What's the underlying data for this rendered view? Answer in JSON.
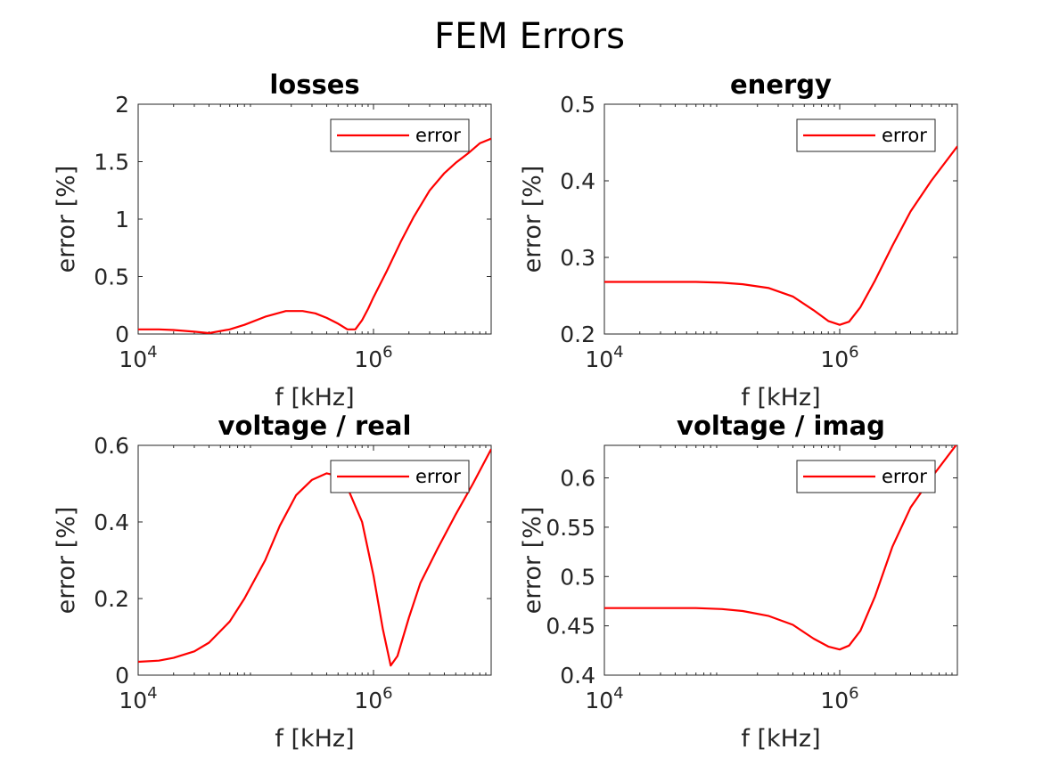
{
  "figure": {
    "title": "FEM Errors"
  },
  "chart_data": [
    {
      "type": "line",
      "title": "losses",
      "xlabel": "f [kHz]",
      "ylabel": "error [%]",
      "xscale": "log",
      "xlim": [
        10000,
        10000000
      ],
      "ylim": [
        0,
        2
      ],
      "yticks": [
        0,
        0.5,
        1,
        1.5,
        2
      ],
      "ytick_labels": [
        "0",
        "0.5",
        "1",
        "1.5",
        "2"
      ],
      "xticks": [
        10000,
        1000000
      ],
      "xtick_labels": [
        {
          "base": "10",
          "exp": "4"
        },
        {
          "base": "10",
          "exp": "6"
        }
      ],
      "legend": "top-right",
      "series": [
        {
          "name": "error",
          "color": "#ff0000",
          "x": [
            10000,
            15000,
            20000,
            30000,
            40000,
            60000,
            80000,
            120000,
            180000,
            250000,
            320000,
            400000,
            500000,
            600000,
            700000,
            800000,
            900000,
            1000000,
            1300000,
            1700000,
            2200000,
            3000000,
            4000000,
            5000000,
            6500000,
            8000000,
            10000000
          ],
          "values": [
            0.04,
            0.04,
            0.035,
            0.02,
            0.008,
            0.04,
            0.08,
            0.15,
            0.2,
            0.2,
            0.18,
            0.14,
            0.09,
            0.04,
            0.04,
            0.12,
            0.22,
            0.32,
            0.55,
            0.8,
            1.02,
            1.25,
            1.4,
            1.49,
            1.58,
            1.66,
            1.7
          ]
        }
      ]
    },
    {
      "type": "line",
      "title": "energy",
      "xlabel": "f [kHz]",
      "ylabel": "error [%]",
      "xscale": "log",
      "xlim": [
        10000,
        10000000
      ],
      "ylim": [
        0.2,
        0.5
      ],
      "yticks": [
        0.2,
        0.3,
        0.4,
        0.5
      ],
      "ytick_labels": [
        "0.2",
        "0.3",
        "0.4",
        "0.5"
      ],
      "xticks": [
        10000,
        1000000
      ],
      "xtick_labels": [
        {
          "base": "10",
          "exp": "4"
        },
        {
          "base": "10",
          "exp": "6"
        }
      ],
      "legend": "top-right",
      "series": [
        {
          "name": "error",
          "color": "#ff0000",
          "x": [
            10000,
            30000,
            60000,
            100000,
            150000,
            250000,
            400000,
            600000,
            800000,
            1000000,
            1200000,
            1500000,
            2000000,
            2800000,
            4000000,
            6000000,
            10000000
          ],
          "values": [
            0.268,
            0.268,
            0.268,
            0.267,
            0.265,
            0.26,
            0.249,
            0.231,
            0.217,
            0.212,
            0.216,
            0.235,
            0.27,
            0.315,
            0.36,
            0.4,
            0.445
          ]
        }
      ]
    },
    {
      "type": "line",
      "title": "voltage / real",
      "xlabel": "f [kHz]",
      "ylabel": "error [%]",
      "xscale": "log",
      "xlim": [
        10000,
        10000000
      ],
      "ylim": [
        0,
        0.6
      ],
      "yticks": [
        0,
        0.2,
        0.4,
        0.6
      ],
      "ytick_labels": [
        "0",
        "0.2",
        "0.4",
        "0.6"
      ],
      "xticks": [
        10000,
        1000000
      ],
      "xtick_labels": [
        {
          "base": "10",
          "exp": "4"
        },
        {
          "base": "10",
          "exp": "6"
        }
      ],
      "legend": "top-right",
      "series": [
        {
          "name": "error",
          "color": "#ff0000",
          "x": [
            10000,
            15000,
            20000,
            30000,
            40000,
            60000,
            80000,
            120000,
            160000,
            220000,
            300000,
            400000,
            500000,
            600000,
            800000,
            1000000,
            1200000,
            1400000,
            1600000,
            2000000,
            2500000,
            3500000,
            5000000,
            7000000,
            10000000
          ],
          "values": [
            0.035,
            0.038,
            0.045,
            0.062,
            0.085,
            0.14,
            0.2,
            0.3,
            0.39,
            0.47,
            0.51,
            0.527,
            0.52,
            0.49,
            0.4,
            0.26,
            0.12,
            0.025,
            0.05,
            0.15,
            0.24,
            0.33,
            0.42,
            0.5,
            0.59
          ]
        }
      ]
    },
    {
      "type": "line",
      "title": "voltage / imag",
      "xlabel": "f [kHz]",
      "ylabel": "error [%]",
      "xscale": "log",
      "xlim": [
        10000,
        10000000
      ],
      "ylim": [
        0.4,
        0.633
      ],
      "yticks": [
        0.4,
        0.45,
        0.5,
        0.55,
        0.6
      ],
      "ytick_labels": [
        "0.4",
        "0.45",
        "0.5",
        "0.55",
        "0.6"
      ],
      "xticks": [
        10000,
        1000000
      ],
      "xtick_labels": [
        {
          "base": "10",
          "exp": "4"
        },
        {
          "base": "10",
          "exp": "6"
        }
      ],
      "legend": "top-right",
      "series": [
        {
          "name": "error",
          "color": "#ff0000",
          "x": [
            10000,
            30000,
            60000,
            100000,
            150000,
            250000,
            400000,
            600000,
            800000,
            1000000,
            1200000,
            1500000,
            2000000,
            2800000,
            4000000,
            6000000,
            10000000
          ],
          "values": [
            0.468,
            0.468,
            0.468,
            0.467,
            0.465,
            0.46,
            0.451,
            0.437,
            0.429,
            0.426,
            0.43,
            0.445,
            0.48,
            0.53,
            0.57,
            0.6,
            0.635
          ]
        }
      ]
    }
  ]
}
